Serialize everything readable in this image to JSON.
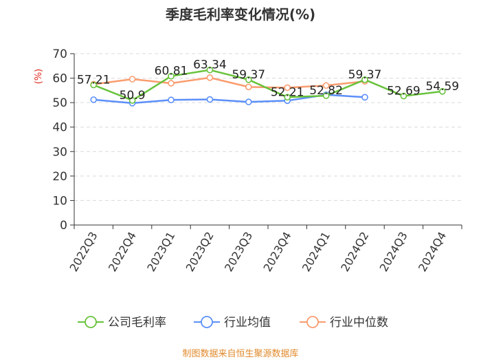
{
  "chart_data": {
    "type": "line",
    "title": "季度毛利率变化情况(%)",
    "ylabel": "(%)",
    "xlabel": "",
    "ylim": [
      0,
      70
    ],
    "yticks": [
      0,
      10,
      20,
      30,
      40,
      50,
      60,
      70
    ],
    "grid": true,
    "legend_position": "bottom",
    "categories": [
      "2022Q3",
      "2022Q4",
      "2023Q1",
      "2023Q2",
      "2023Q3",
      "2023Q4",
      "2024Q1",
      "2024Q2",
      "2024Q3",
      "2024Q4"
    ],
    "series": [
      {
        "name": "公司毛利率",
        "color": "#67c23a",
        "values": [
          57.21,
          50.9,
          60.81,
          63.34,
          59.37,
          52.21,
          52.82,
          59.37,
          52.69,
          54.59
        ],
        "labels": [
          "57.21",
          "50.9",
          "60.81",
          "63.34",
          "59.37",
          "52.21",
          "52.82",
          "59.37",
          "52.69",
          "54.59"
        ]
      },
      {
        "name": "行业均值",
        "color": "#5b8ff9",
        "values": [
          51.2,
          49.8,
          51.1,
          51.3,
          50.3,
          50.8,
          53.2,
          52.2,
          null,
          null
        ]
      },
      {
        "name": "行业中位数",
        "color": "#fa9c6e",
        "values": [
          57.5,
          59.6,
          57.9,
          60.2,
          56.4,
          56.1,
          57.0,
          58.7,
          null,
          null
        ]
      }
    ],
    "source_note": "制图数据来自恒生聚源数据库"
  }
}
